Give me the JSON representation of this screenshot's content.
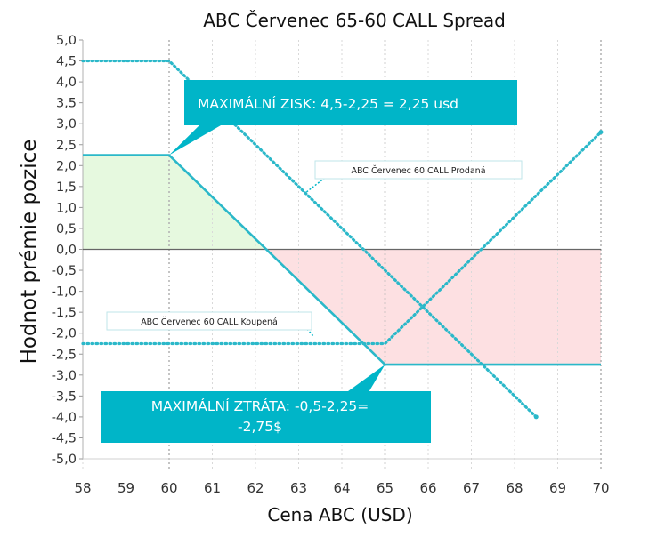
{
  "chart_data": {
    "type": "line",
    "title": "ABC Červenec 65-60 CALL Spread",
    "xlabel": "Cena ABC (USD)",
    "ylabel": "Hodnot prémie pozice",
    "xlim": [
      58,
      70
    ],
    "ylim": [
      -5,
      5
    ],
    "x_ticks": [
      58,
      59,
      60,
      61,
      62,
      63,
      64,
      65,
      66,
      67,
      68,
      69,
      70
    ],
    "x_tick_labels": [
      "58",
      "59",
      "60",
      "61",
      "62",
      "63",
      "64",
      "65",
      "66",
      "67",
      "68",
      "69",
      "70"
    ],
    "y_ticks": [
      5,
      4.5,
      4,
      3.5,
      3,
      2.5,
      2,
      1.5,
      1,
      0.5,
      0,
      -0.5,
      -1,
      -1.5,
      -2,
      -2.5,
      -3,
      -3.5,
      -4,
      -4.5,
      -5
    ],
    "y_tick_labels": [
      "5,0",
      "4,5",
      "4,0",
      "3,5",
      "3,0",
      "2,5",
      "2,0",
      "1,5",
      "1,0",
      "0,5",
      "0,0",
      "-0,5",
      "-1,0",
      "-1,5",
      "-2,0",
      "-2,5",
      "-3,0",
      "-3,5",
      "-4,0",
      "-4,5",
      "-5,0"
    ],
    "grid": "vertical dashed",
    "series": [
      {
        "name": "",
        "style": "solid",
        "color": "#2bb8c9",
        "x": [
          58,
          60,
          65,
          70
        ],
        "y": [
          2.25,
          2.25,
          -2.75,
          -2.75
        ]
      },
      {
        "name": "ABC Červenec 60 CALL Prodaná",
        "style": "dotted",
        "color": "#2bb8c9",
        "x": [
          58,
          60,
          68.5
        ],
        "y": [
          4.5,
          4.5,
          -4.0
        ]
      },
      {
        "name": "ABC Červenec 60 CALL Koupená",
        "style": "dotted",
        "color": "#2bb8c9",
        "x": [
          58,
          65,
          70
        ],
        "y": [
          -2.25,
          -2.25,
          2.8
        ]
      }
    ],
    "regions": [
      {
        "kind": "profit",
        "color": "#e6f9df"
      },
      {
        "kind": "loss",
        "color": "#fde0e2"
      }
    ],
    "annotations": {
      "max_profit": "MAXIMÁLNÍ ZISK: 4,5-2,25 = 2,25 usd",
      "max_loss_line1": "MAXIMÁLNÍ ZTRÁTA: -0,5-2,25=",
      "max_loss_line2": "-2,75$",
      "label_sold": "ABC Červenec 60 CALL Prodaná",
      "label_bought": "ABC Červenec 60 CALL Koupená"
    },
    "colors": {
      "accent": "#00b5c8",
      "line": "#2bb8c9",
      "zero_line": "#666666"
    }
  }
}
